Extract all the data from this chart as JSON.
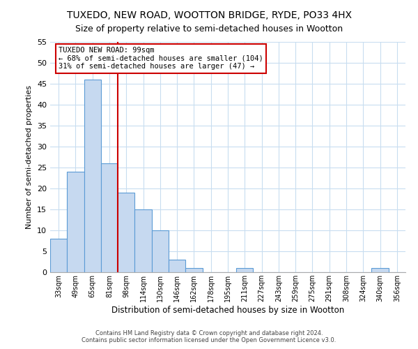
{
  "title": "TUXEDO, NEW ROAD, WOOTTON BRIDGE, RYDE, PO33 4HX",
  "subtitle": "Size of property relative to semi-detached houses in Wootton",
  "xlabel": "Distribution of semi-detached houses by size in Wootton",
  "ylabel": "Number of semi-detached properties",
  "footer_line1": "Contains HM Land Registry data © Crown copyright and database right 2024.",
  "footer_line2": "Contains public sector information licensed under the Open Government Licence v3.0.",
  "bin_labels": [
    "33sqm",
    "49sqm",
    "65sqm",
    "81sqm",
    "98sqm",
    "114sqm",
    "130sqm",
    "146sqm",
    "162sqm",
    "178sqm",
    "195sqm",
    "211sqm",
    "227sqm",
    "243sqm",
    "259sqm",
    "275sqm",
    "291sqm",
    "308sqm",
    "324sqm",
    "340sqm",
    "356sqm"
  ],
  "bar_values": [
    8,
    24,
    46,
    26,
    19,
    15,
    10,
    3,
    1,
    0,
    0,
    1,
    0,
    0,
    0,
    0,
    0,
    0,
    0,
    1,
    0
  ],
  "bar_color": "#c6d9f0",
  "bar_edge_color": "#5b9bd5",
  "property_line_color": "#cc0000",
  "annotation_title": "TUXEDO NEW ROAD: 99sqm",
  "annotation_line1": "← 68% of semi-detached houses are smaller (104)",
  "annotation_line2": "31% of semi-detached houses are larger (47) →",
  "annotation_box_color": "#ffffff",
  "annotation_box_edge": "#cc0000",
  "ylim": [
    0,
    55
  ],
  "yticks": [
    0,
    5,
    10,
    15,
    20,
    25,
    30,
    35,
    40,
    45,
    50,
    55
  ],
  "grid_color": "#c8ddf0",
  "title_fontsize": 10,
  "subtitle_fontsize": 9
}
